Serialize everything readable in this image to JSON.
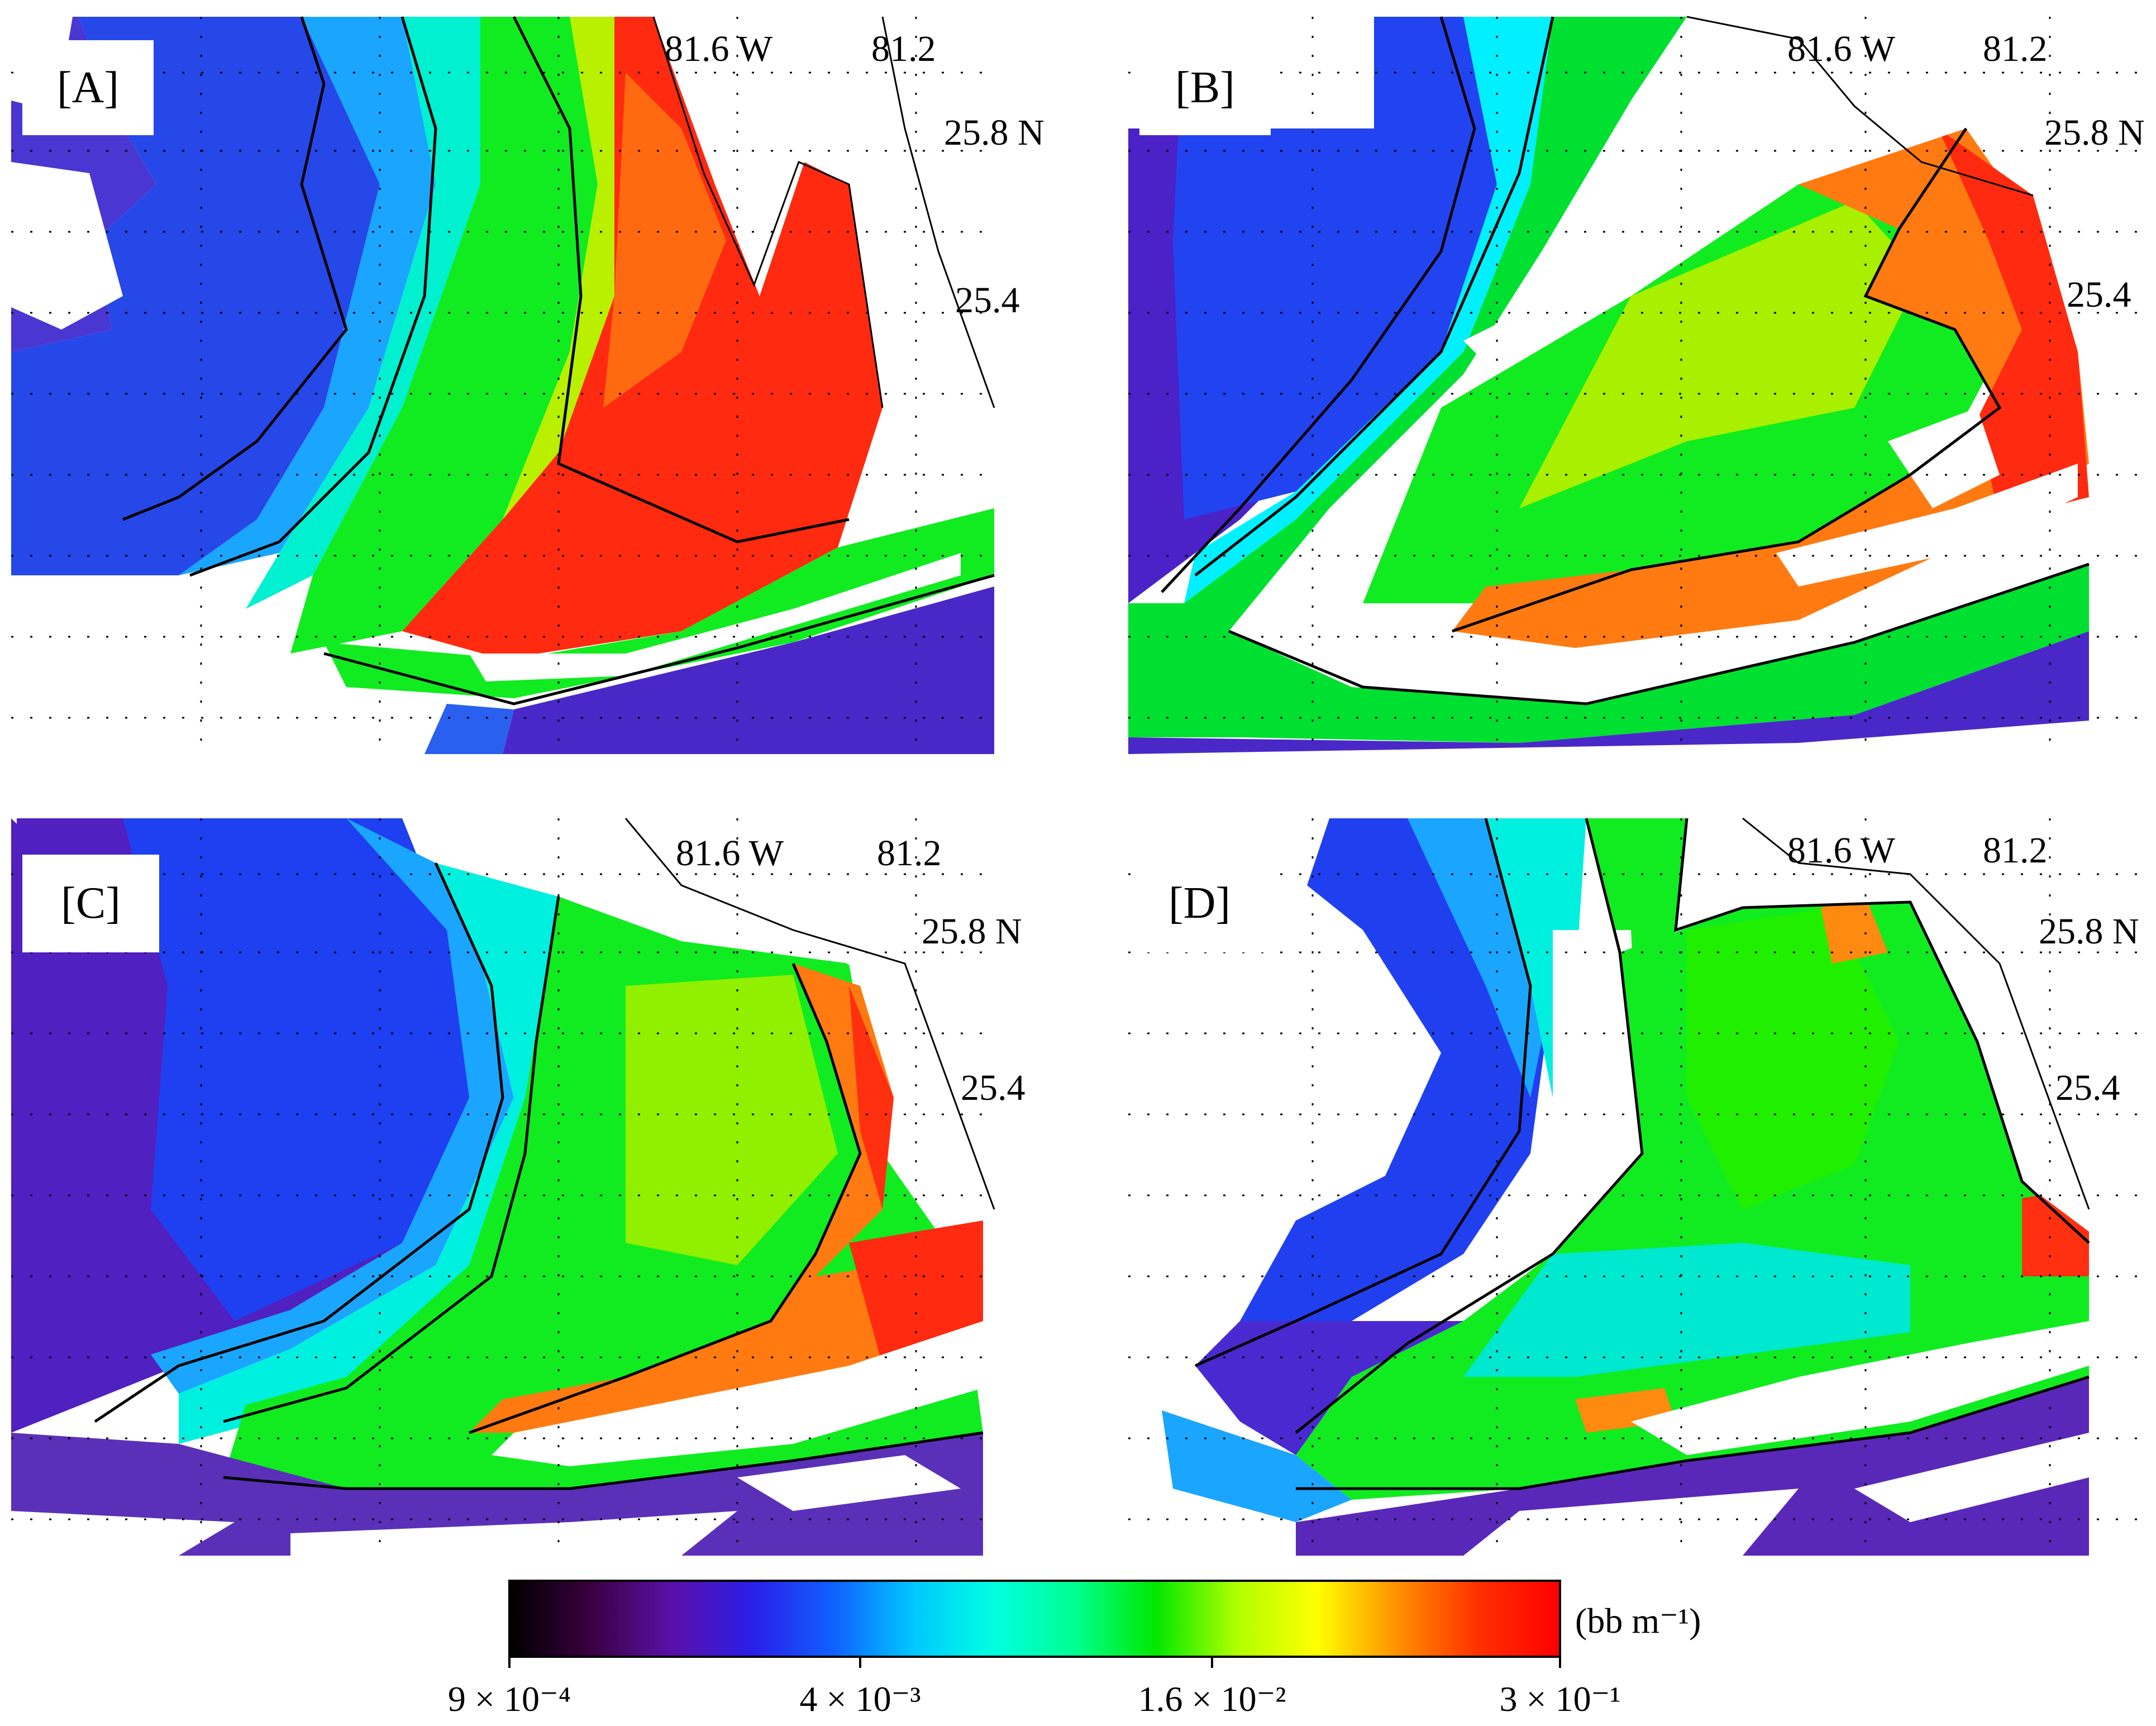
{
  "panels": [
    {
      "id": "A",
      "label": "[A]",
      "lon1": "81.6 W",
      "lon2": "81.2",
      "lat1": "25.8 N",
      "lat2": "25.4"
    },
    {
      "id": "B",
      "label": "[B]",
      "lon1": "81.6 W",
      "lon2": "81.2",
      "lat1": "25.8 N",
      "lat2": "25.4"
    },
    {
      "id": "C",
      "label": "[C]",
      "lon1": "81.6 W",
      "lon2": "81.2",
      "lat1": "25.8 N",
      "lat2": "25.4"
    },
    {
      "id": "D",
      "label": "[D]",
      "lon1": "81.6 W",
      "lon2": "81.2",
      "lat1": "25.8 N",
      "lat2": "25.4"
    }
  ],
  "colorbar": {
    "units": "(bb m⁻¹)",
    "ticks": [
      "9 × 10⁻⁴",
      "4 × 10⁻³",
      "1.6 × 10⁻²",
      "3 × 10⁻¹"
    ],
    "colors": [
      "#000000",
      "#3a0040",
      "#5a10a8",
      "#2a1ee8",
      "#1060ff",
      "#00c8ff",
      "#00ffe0",
      "#00ff90",
      "#00e800",
      "#b0ff00",
      "#ffff00",
      "#ff9000",
      "#ff3000",
      "#ff0000"
    ]
  },
  "palette": {
    "deep": "#5018b8",
    "blue": "#1e48f0",
    "lightblue": "#1aa6ff",
    "cyan": "#00f0ff",
    "green": "#10ec20",
    "yellowgreen": "#c8f000",
    "orange": "#ff8a10",
    "red": "#ff2010",
    "land": "#ffffff",
    "contour": "#000000"
  }
}
